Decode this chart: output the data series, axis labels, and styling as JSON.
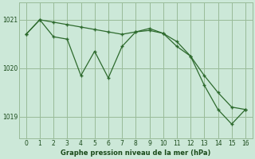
{
  "line1_x": [
    0,
    1,
    2,
    3,
    4,
    5,
    6,
    7,
    8,
    9,
    10,
    11,
    12,
    13,
    14,
    15,
    16
  ],
  "line1_y": [
    1020.7,
    1021.0,
    1020.95,
    1020.9,
    1020.85,
    1020.8,
    1020.75,
    1020.7,
    1020.75,
    1020.78,
    1020.72,
    1020.55,
    1020.25,
    1019.85,
    1019.5,
    1019.2,
    1019.15
  ],
  "line2_x": [
    0,
    1,
    2,
    3,
    4,
    5,
    6,
    7,
    8,
    9,
    10,
    11,
    12,
    13,
    14,
    15,
    16
  ],
  "line2_y": [
    1020.7,
    1021.0,
    1020.65,
    1020.6,
    1019.85,
    1020.35,
    1019.8,
    1020.45,
    1020.75,
    1020.82,
    1020.72,
    1020.45,
    1020.25,
    1019.65,
    1019.15,
    1018.85,
    1019.15
  ],
  "line_color": "#2d6a2d",
  "bg_color": "#cce8d8",
  "plot_bg_color": "#cce8d8",
  "grid_color": "#99bb99",
  "xlabel": "Graphe pression niveau de la mer (hPa)",
  "xlabel_color": "#1a4a1a",
  "tick_color": "#1a4a1a",
  "ytick_labels": [
    1019,
    1020,
    1021
  ],
  "xtick_labels": [
    0,
    1,
    2,
    3,
    4,
    5,
    6,
    7,
    8,
    9,
    10,
    11,
    12,
    13,
    14,
    15,
    16
  ],
  "ylim": [
    1018.55,
    1021.35
  ],
  "xlim": [
    -0.5,
    16.5
  ]
}
